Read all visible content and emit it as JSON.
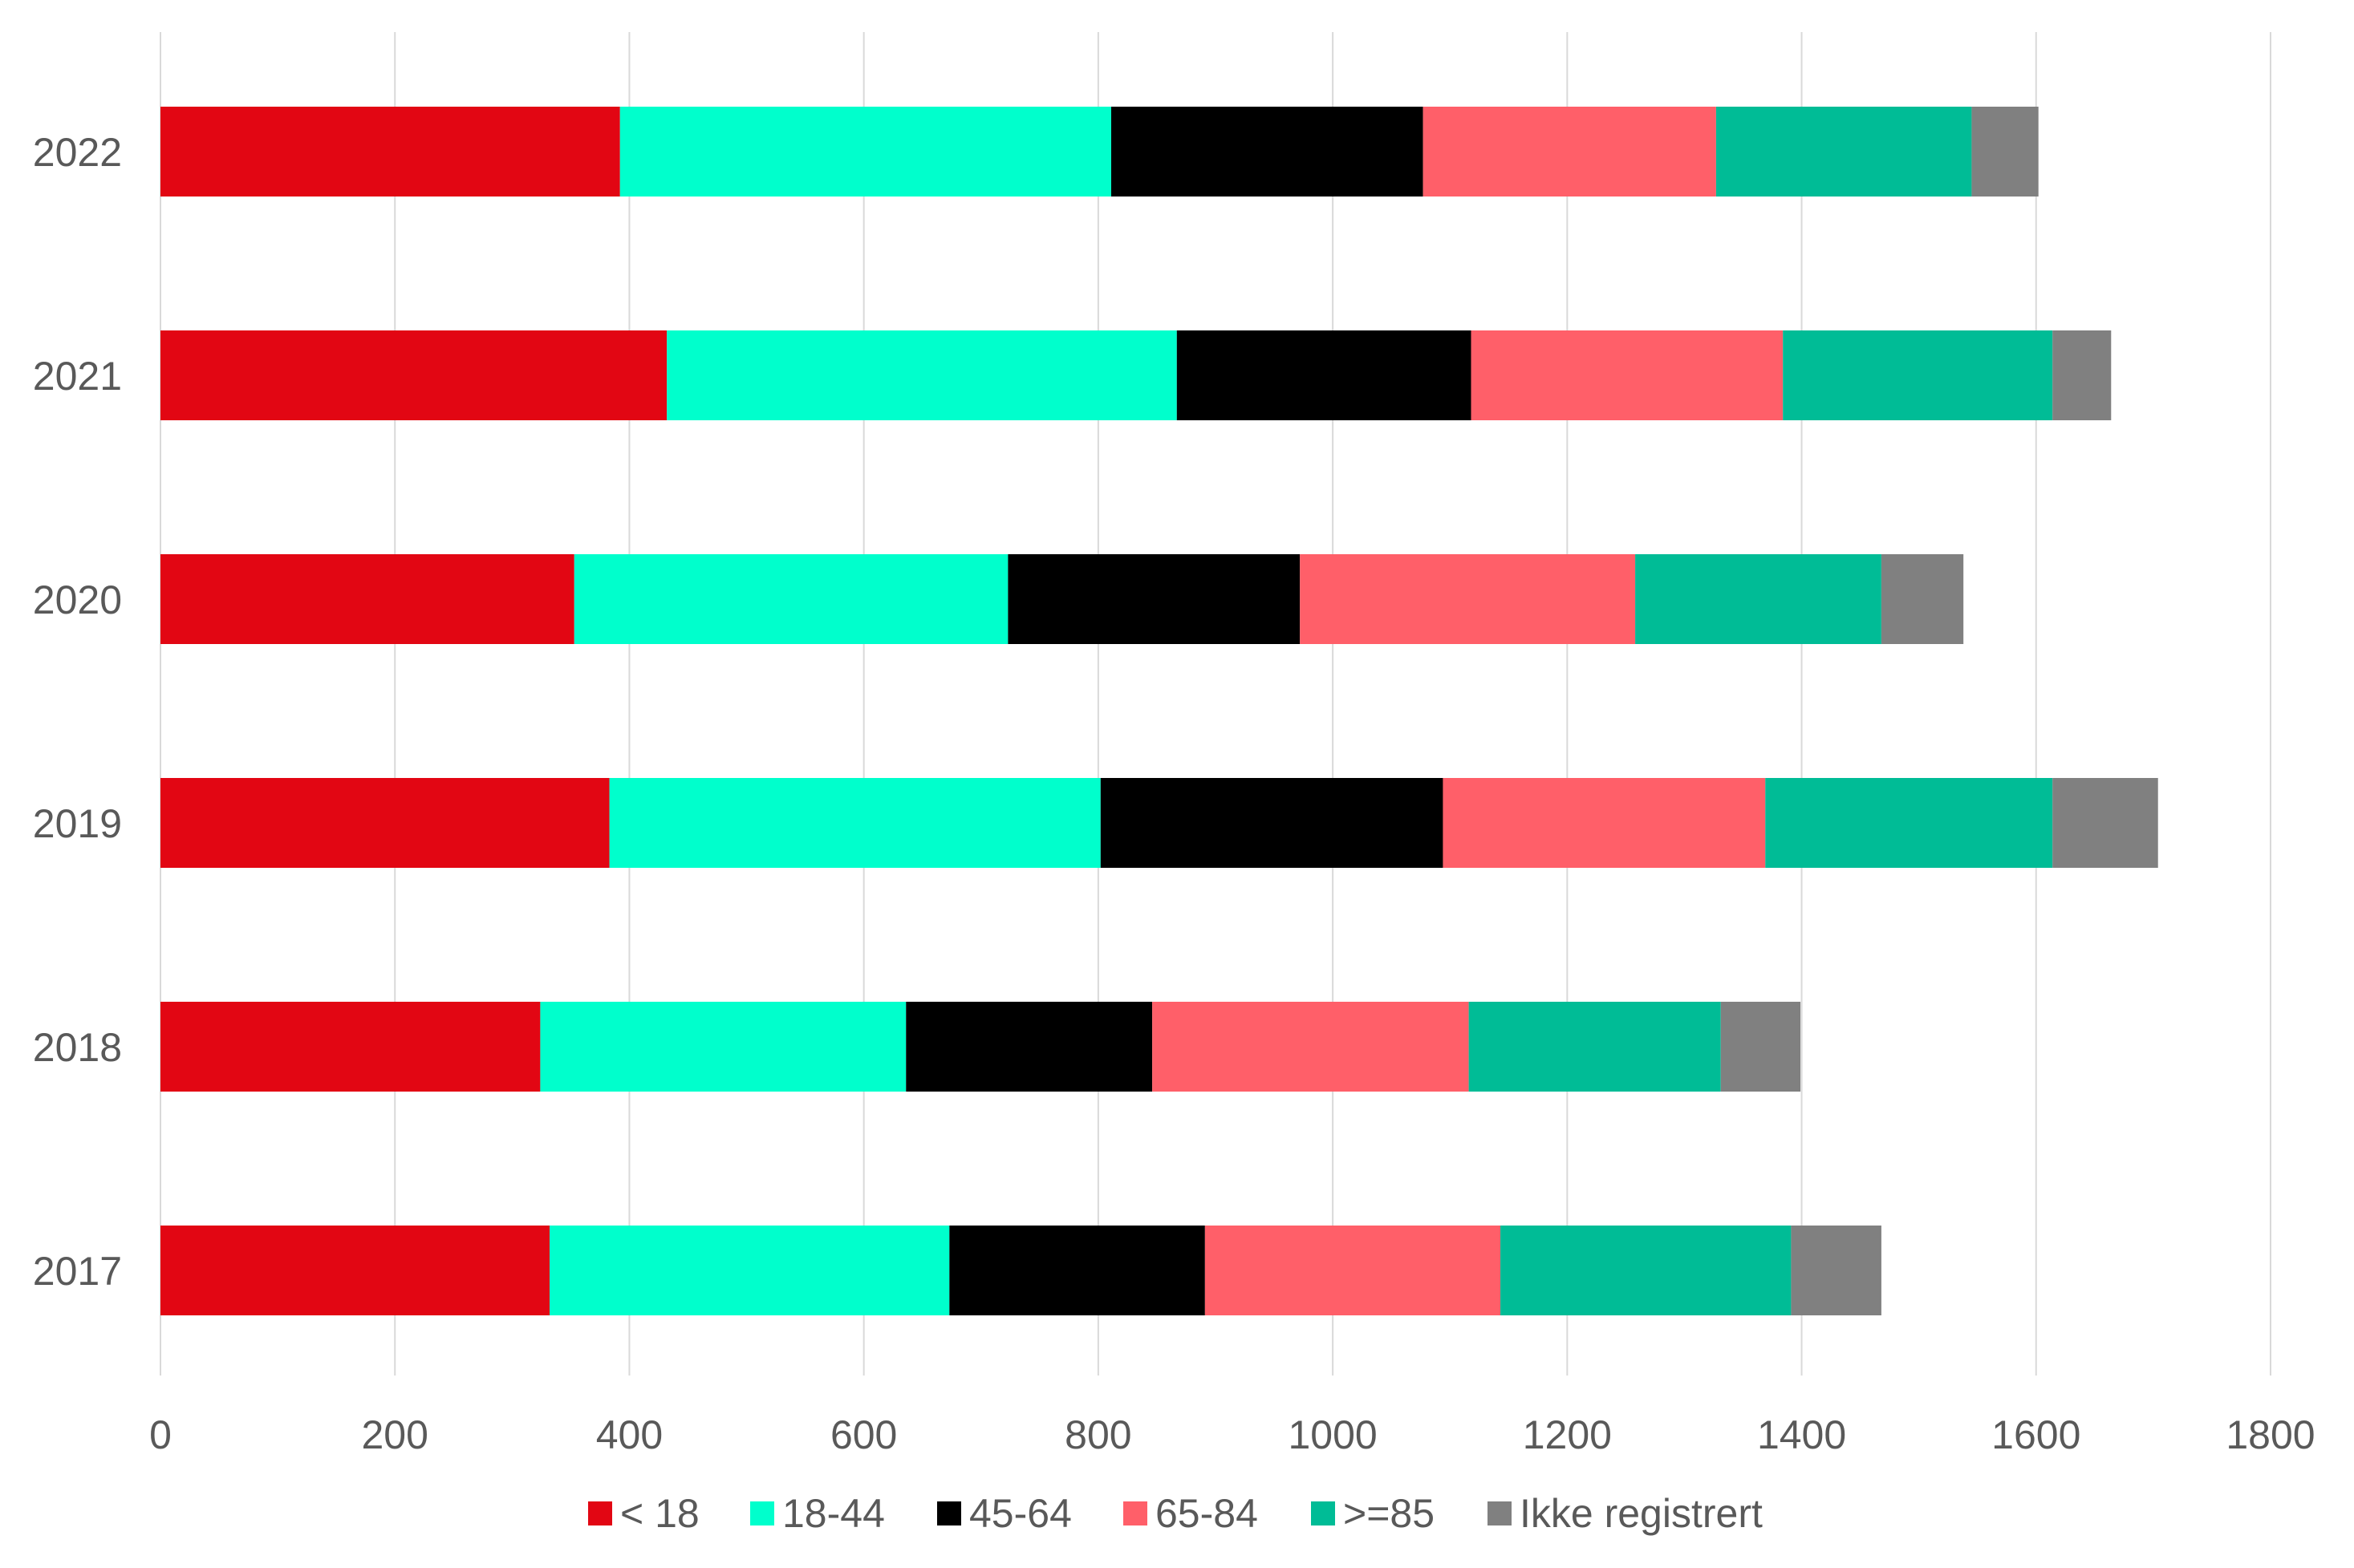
{
  "chart_data": {
    "type": "bar",
    "orientation": "horizontal",
    "stacked": true,
    "categories": [
      "2022",
      "2021",
      "2020",
      "2019",
      "2018",
      "2017"
    ],
    "series": [
      {
        "name": "< 18",
        "color": "#e20613",
        "values": [
          392,
          432,
          353,
          383,
          324,
          332
        ]
      },
      {
        "name": "18-44",
        "color": "#00ffcc",
        "values": [
          419,
          435,
          370,
          419,
          312,
          341
        ]
      },
      {
        "name": "45-64",
        "color": "#000000",
        "values": [
          266,
          251,
          249,
          292,
          210,
          218
        ]
      },
      {
        "name": "65-84",
        "color": "#ff5f69",
        "values": [
          250,
          266,
          286,
          275,
          270,
          252
        ]
      },
      {
        "name": ">=85",
        "color": "#00bc96",
        "values": [
          218,
          230,
          210,
          245,
          215,
          248
        ]
      },
      {
        "name": "Ikke registrert",
        "color": "#808080",
        "values": [
          57,
          50,
          70,
          90,
          68,
          77
        ]
      }
    ],
    "xlim": [
      0,
      1800
    ],
    "x_ticks": [
      "0",
      "200",
      "400",
      "600",
      "800",
      "1000",
      "1200",
      "1400",
      "1600",
      "1800"
    ],
    "grid": true,
    "legend_position": "bottom"
  }
}
